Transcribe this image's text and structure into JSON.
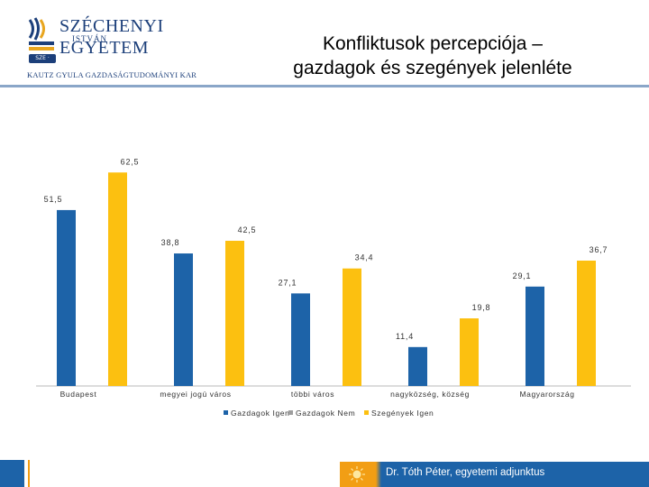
{
  "logo": {
    "name_line1": "SZÉCHENYI",
    "name_small": "ISTVÁN",
    "name_line2": "EGYETEM",
    "subtitle": "KAUTZ GYULA GAZDASÁGTUDOMÁNYI KAR",
    "badge": "SZE · GYŐR"
  },
  "slide": {
    "title_line1": "Konfliktusok percepciója –",
    "title_line2": "gazdagok és szegények jelenléte"
  },
  "footer": {
    "author": "Dr. Tóth Péter, egyetemi adjunktus"
  },
  "colors": {
    "brand_navy": "#1c3f7a",
    "gold": "#e8a51e",
    "series_blue": "#1d63a8",
    "series_yellow": "#fcc010",
    "footer_blue": "#1d63a8",
    "footer_orange": "#f29e14",
    "rule": "#8aa6c8",
    "axis": "#b8b8b8"
  },
  "chart_data": {
    "type": "bar",
    "categories": [
      "Budapest",
      "megyei jogú város",
      "többi város",
      "nagyközség, község",
      "Magyarország"
    ],
    "series": [
      {
        "name": "Gazdagok  Igen",
        "values": [
          51.5,
          38.8,
          27.1,
          11.4,
          29.1
        ],
        "labels": [
          "51,5",
          "38,8",
          "27,1",
          "11,4",
          "29,1"
        ],
        "color": "#1d63a8"
      },
      {
        "name": "Gazdagok  Nem",
        "values": [
          null,
          null,
          null,
          null,
          null
        ],
        "labels": [],
        "color": "#9e9e9e"
      },
      {
        "name": "Szegények  Igen",
        "values": [
          62.5,
          42.5,
          34.4,
          19.8,
          36.7
        ],
        "labels": [
          "62,5",
          "42,5",
          "34,4",
          "19,8",
          "36,7"
        ],
        "color": "#fcc010"
      }
    ],
    "legend_position": "bottom",
    "grid": false,
    "ylim": [
      0,
      66
    ]
  }
}
